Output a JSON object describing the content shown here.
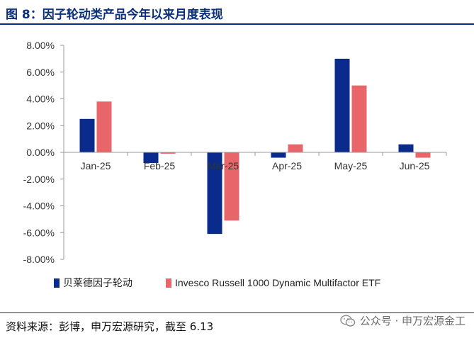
{
  "title": "图 8：因子轮动类产品今年以来月度表现",
  "source_note": "资料来源：彭博，申万宏源研究，截至 6.13",
  "watermark": {
    "text": "公众号 · 申万宏源金工",
    "icon": "wechat-icon"
  },
  "colors": {
    "title": "#0b2f7a",
    "series1": "#0a2a8c",
    "series2": "#e8666a",
    "axis": "#999999"
  },
  "chart_data": {
    "type": "bar",
    "title": "",
    "xlabel": "",
    "ylabel": "",
    "categories": [
      "Jan-25",
      "Feb-25",
      "Mar-25",
      "Apr-25",
      "May-25",
      "Jun-25"
    ],
    "series": [
      {
        "name": "贝莱德因子轮动",
        "values": [
          2.5,
          -0.8,
          -6.1,
          -0.4,
          7.0,
          0.6
        ]
      },
      {
        "name": "Invesco Russell 1000 Dynamic Multifactor ETF",
        "values": [
          3.8,
          -0.1,
          -5.1,
          0.6,
          5.0,
          -0.4
        ]
      }
    ],
    "ylim": [
      -8,
      8
    ],
    "yticks": [
      8,
      6,
      4,
      2,
      0,
      -2,
      -4,
      -6,
      -8
    ],
    "ytick_labels": [
      "8.00%",
      "6.00%",
      "4.00%",
      "2.00%",
      "0.00%",
      "-2.00%",
      "-4.00%",
      "-6.00%",
      "-8.00%"
    ],
    "grid": false,
    "legend_position": "bottom"
  }
}
